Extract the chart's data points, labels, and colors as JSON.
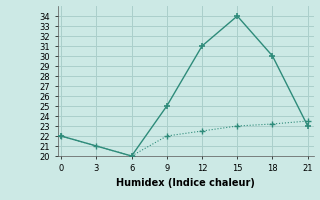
{
  "line1_x": [
    0,
    6,
    9,
    12,
    15,
    18,
    21
  ],
  "line1_y": [
    22,
    20,
    25,
    31,
    34,
    30,
    23
  ],
  "line2_x": [
    0,
    3,
    6,
    9,
    12,
    15,
    18,
    21
  ],
  "line2_y": [
    22,
    21,
    20,
    22,
    22.5,
    23,
    23.2,
    23.5
  ],
  "color": "#2e8b7a",
  "xlabel": "Humidex (Indice chaleur)",
  "ylim": [
    20,
    35
  ],
  "xlim": [
    -0.3,
    21.5
  ],
  "yticks": [
    20,
    21,
    22,
    23,
    24,
    25,
    26,
    27,
    28,
    29,
    30,
    31,
    32,
    33,
    34
  ],
  "xticks": [
    0,
    3,
    6,
    9,
    12,
    15,
    18,
    21
  ],
  "bg_color": "#cce9e5",
  "grid_color": "#aacfcb"
}
